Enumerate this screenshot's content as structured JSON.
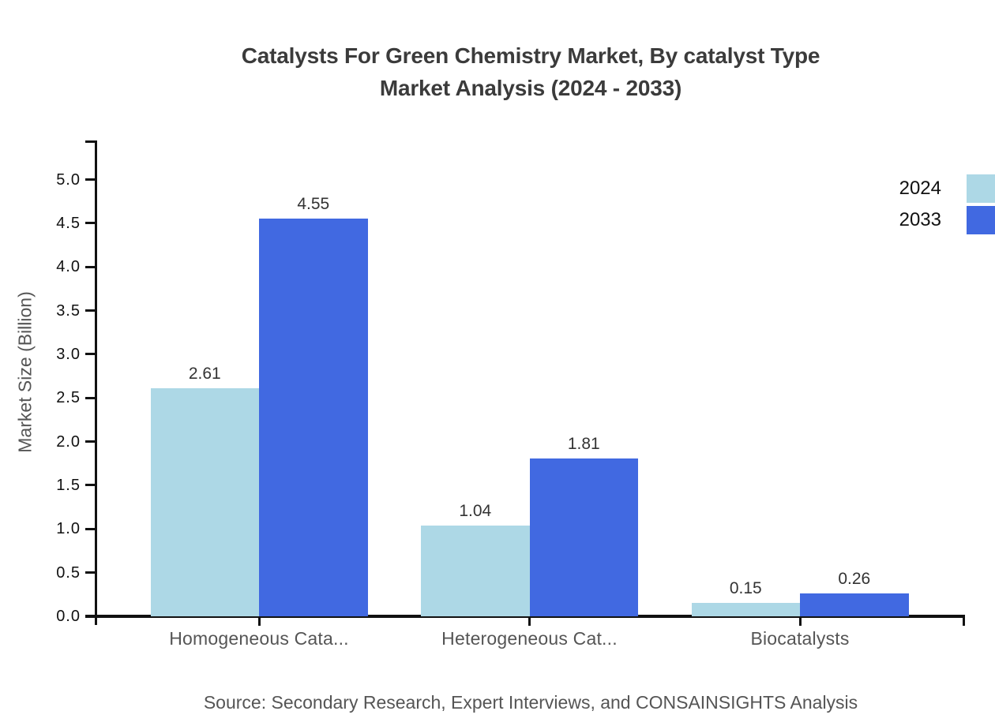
{
  "title": {
    "line1": "Catalysts For Green Chemistry Market, By catalyst Type",
    "line2": "Market Analysis (2024 - 2033)"
  },
  "source": "Source: Secondary Research, Expert Interviews, and CONSAINSIGHTS Analysis",
  "colors": {
    "series_2024": "#ADD8E6",
    "series_2033": "#4169E1",
    "axis": "#111111",
    "title_text": "#3B3B3B",
    "muted_text": "#555555",
    "value_text": "#333333"
  },
  "chart_data": {
    "type": "bar",
    "title": "Catalysts For Green Chemistry Market, By catalyst Type Market Analysis (2024 - 2033)",
    "categories": [
      "Homogeneous Cata...",
      "Heterogeneous Cat...",
      "Biocatalysts"
    ],
    "series": [
      {
        "name": "2024",
        "color": "#ADD8E6",
        "values": [
          2.61,
          1.04,
          0.15
        ]
      },
      {
        "name": "2033",
        "color": "#4169E1",
        "values": [
          4.55,
          1.81,
          0.26
        ]
      }
    ],
    "xlabel": "",
    "ylabel": "Market Size (Billion)",
    "ylim": [
      0,
      5.45
    ],
    "yticks": [
      0.0,
      0.5,
      1.0,
      1.5,
      2.0,
      2.5,
      3.0,
      3.5,
      4.0,
      4.5,
      5.0
    ],
    "value_labels_decimals": 2,
    "grid": false,
    "legend_position": "top-right"
  }
}
